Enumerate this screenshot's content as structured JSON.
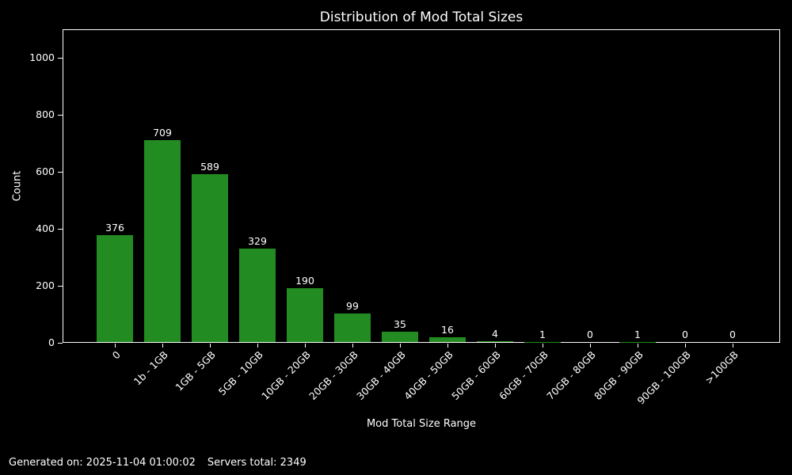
{
  "chart_data": {
    "type": "bar",
    "title": "Distribution of Mod Total Sizes",
    "xlabel": "Mod Total Size Range",
    "ylabel": "Count",
    "categories": [
      "0",
      "1b - 1GB",
      "1GB - 5GB",
      "5GB - 10GB",
      "10GB - 20GB",
      "20GB - 30GB",
      "30GB - 40GB",
      "40GB - 50GB",
      "50GB - 60GB",
      "60GB - 70GB",
      "70GB - 80GB",
      "80GB - 90GB",
      "90GB - 100GB",
      ">100GB"
    ],
    "values": [
      376,
      709,
      589,
      329,
      190,
      99,
      35,
      16,
      4,
      1,
      0,
      1,
      0,
      0
    ],
    "yticks": [
      0,
      200,
      400,
      600,
      800,
      1000
    ],
    "ylim": [
      0,
      1100
    ],
    "bar_value_labels_shown": true,
    "grid": false,
    "legend": null,
    "colors": {
      "bar": "#228B22",
      "background": "#000000",
      "text": "#ffffff",
      "axis": "#ffffff"
    }
  },
  "footer": {
    "generated_text": "Generated on: 2025-11-04 01:00:02",
    "servers_text": "Servers total: 2349"
  }
}
